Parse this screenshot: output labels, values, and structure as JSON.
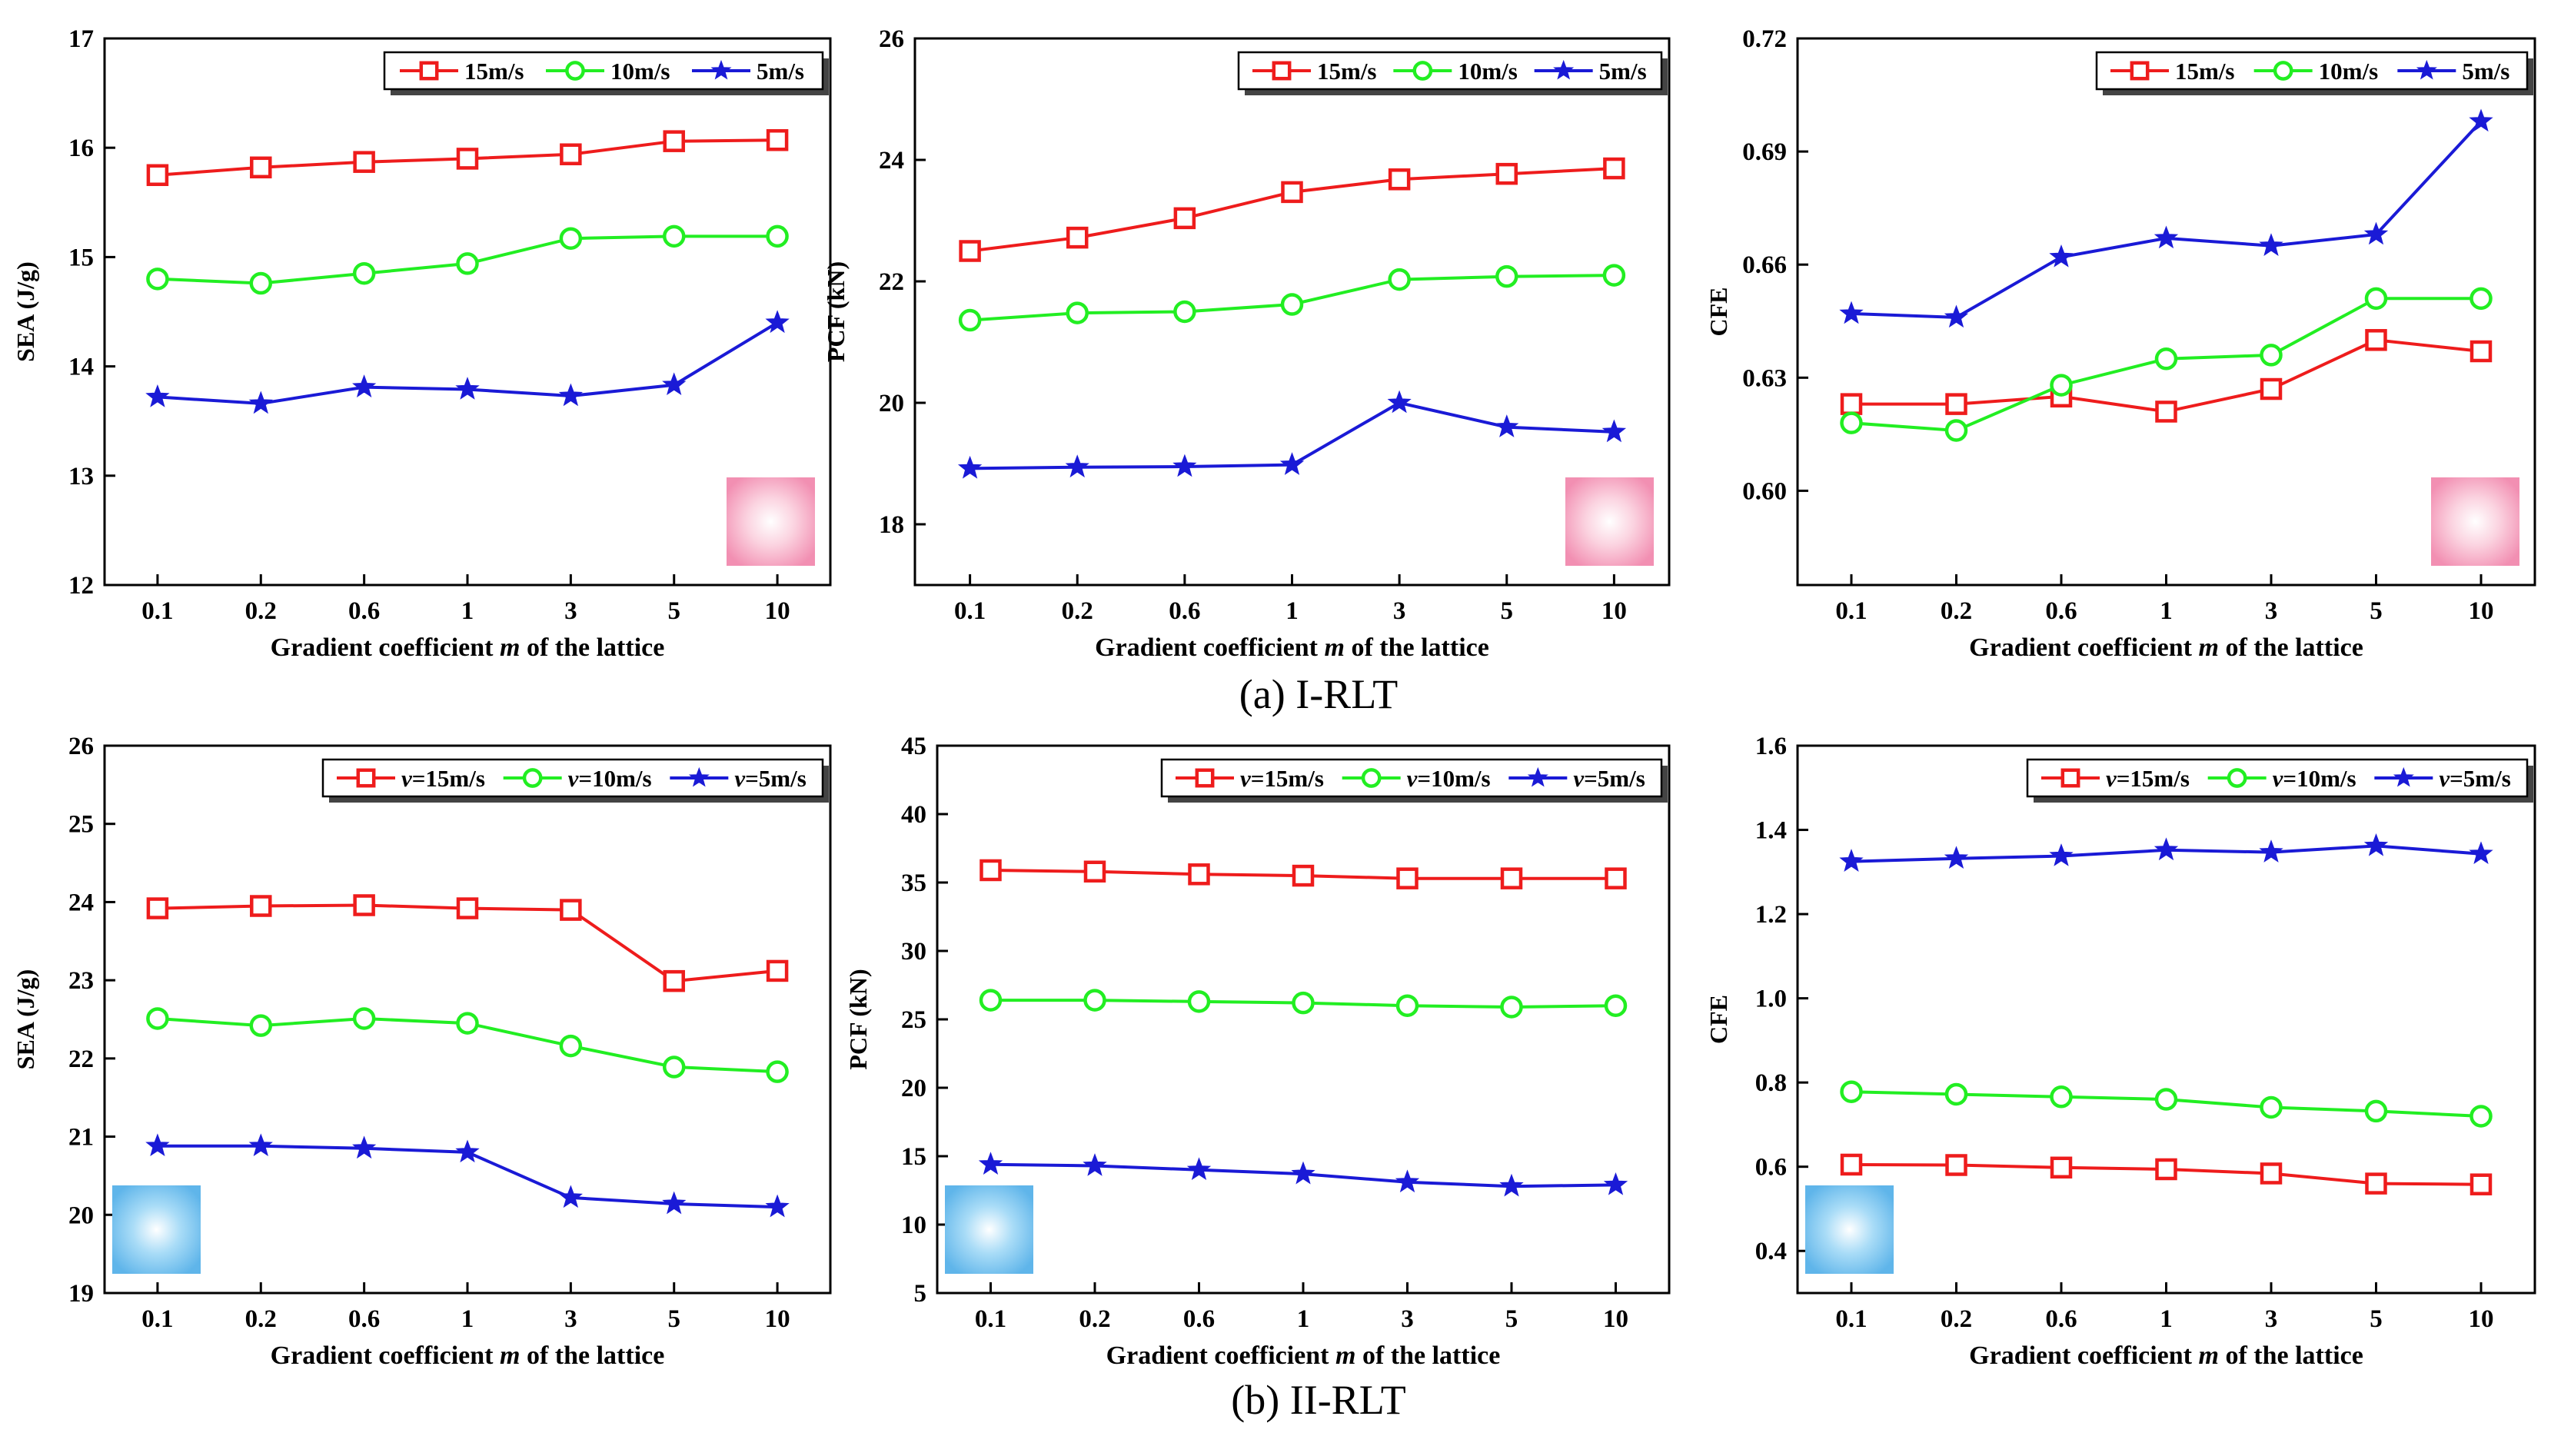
{
  "colors": {
    "red": "#ee1c1c",
    "green": "#22ee22",
    "blue": "#1a1ad6",
    "pink_swatch": "#f7a8c2",
    "blue_swatch": "#7fc6f0"
  },
  "captions": {
    "a": "(a) I-RLT",
    "b": "(b) II-RLT"
  },
  "chart_data": [
    {
      "id": "a-sea",
      "type": "line",
      "categories": [
        "0.1",
        "0.2",
        "0.6",
        "1",
        "3",
        "5",
        "10"
      ],
      "xlabel_pre": "Gradient coefficient ",
      "xlabel_em": "m",
      "xlabel_post": " of the lattice",
      "ylabel": "SEA (J/g)",
      "ylim": [
        12,
        17
      ],
      "yticks": [
        12,
        13,
        14,
        15,
        16,
        17
      ],
      "ytick_labels": [
        "12",
        "13",
        "14",
        "15",
        "16",
        "17"
      ],
      "legend_position": "top-right",
      "swatch": "pink",
      "swatch_position": "bottom-right",
      "series": [
        {
          "name": "15m/s",
          "prefix": "",
          "marker": "square",
          "color": "red",
          "values": [
            15.75,
            15.82,
            15.87,
            15.9,
            15.94,
            16.06,
            16.07
          ]
        },
        {
          "name": "10m/s",
          "prefix": "",
          "marker": "circle",
          "color": "green",
          "values": [
            14.8,
            14.76,
            14.85,
            14.94,
            15.17,
            15.19,
            15.19
          ]
        },
        {
          "name": "5m/s",
          "prefix": "",
          "marker": "star",
          "color": "blue",
          "values": [
            13.72,
            13.66,
            13.81,
            13.79,
            13.73,
            13.83,
            14.4
          ]
        }
      ]
    },
    {
      "id": "a-pcf",
      "type": "line",
      "categories": [
        "0.1",
        "0.2",
        "0.6",
        "1",
        "3",
        "5",
        "10"
      ],
      "xlabel_pre": "Gradient coefficient ",
      "xlabel_em": "m",
      "xlabel_post": " of the lattice",
      "ylabel": "PCF (kN)",
      "ylim": [
        17,
        26
      ],
      "yticks": [
        18,
        20,
        22,
        24,
        26
      ],
      "ytick_labels": [
        "18",
        "20",
        "22",
        "24",
        "26"
      ],
      "legend_position": "top-right",
      "swatch": "pink",
      "swatch_position": "bottom-right",
      "series": [
        {
          "name": "15m/s",
          "prefix": "",
          "marker": "square",
          "color": "red",
          "values": [
            22.5,
            22.72,
            23.04,
            23.47,
            23.68,
            23.77,
            23.86
          ]
        },
        {
          "name": "10m/s",
          "prefix": "",
          "marker": "circle",
          "color": "green",
          "values": [
            21.36,
            21.48,
            21.5,
            21.62,
            22.03,
            22.08,
            22.1
          ]
        },
        {
          "name": "5m/s",
          "prefix": "",
          "marker": "star",
          "color": "blue",
          "values": [
            18.92,
            18.94,
            18.95,
            18.98,
            20.0,
            19.6,
            19.52
          ]
        }
      ]
    },
    {
      "id": "a-cfe",
      "type": "line",
      "categories": [
        "0.1",
        "0.2",
        "0.6",
        "1",
        "3",
        "5",
        "10"
      ],
      "xlabel_pre": "Gradient coefficient ",
      "xlabel_em": "m",
      "xlabel_post": " of the lattice",
      "ylabel": "CFE",
      "ylim": [
        0.575,
        0.72
      ],
      "yticks": [
        0.6,
        0.63,
        0.66,
        0.69,
        0.72
      ],
      "ytick_labels": [
        "0.60",
        "0.63",
        "0.66",
        "0.69",
        "0.72"
      ],
      "legend_position": "top-right",
      "swatch": "pink",
      "swatch_position": "bottom-right",
      "series": [
        {
          "name": "15m/s",
          "prefix": "",
          "marker": "square",
          "color": "red",
          "values": [
            0.623,
            0.623,
            0.625,
            0.621,
            0.627,
            0.64,
            0.637
          ]
        },
        {
          "name": "10m/s",
          "prefix": "",
          "marker": "circle",
          "color": "green",
          "values": [
            0.618,
            0.616,
            0.628,
            0.635,
            0.636,
            0.651,
            0.651
          ]
        },
        {
          "name": "5m/s",
          "prefix": "",
          "marker": "star",
          "color": "blue",
          "values": [
            0.647,
            0.646,
            0.662,
            0.667,
            0.665,
            0.668,
            0.698
          ]
        }
      ]
    },
    {
      "id": "b-sea",
      "type": "line",
      "categories": [
        "0.1",
        "0.2",
        "0.6",
        "1",
        "3",
        "5",
        "10"
      ],
      "xlabel_pre": "Gradient coefficient ",
      "xlabel_em": "m",
      "xlabel_post": " of the lattice",
      "ylabel": "SEA (J/g)",
      "ylim": [
        19,
        26
      ],
      "yticks": [
        19,
        20,
        21,
        22,
        23,
        24,
        25,
        26
      ],
      "ytick_labels": [
        "19",
        "20",
        "21",
        "22",
        "23",
        "24",
        "25",
        "26"
      ],
      "legend_position": "top-right",
      "swatch": "blue",
      "swatch_position": "bottom-left",
      "series": [
        {
          "name": "=15m/s",
          "prefix": "v",
          "marker": "square",
          "color": "red",
          "values": [
            23.92,
            23.95,
            23.96,
            23.92,
            23.9,
            22.99,
            23.12
          ]
        },
        {
          "name": "=10m/s",
          "prefix": "v",
          "marker": "circle",
          "color": "green",
          "values": [
            22.51,
            22.42,
            22.51,
            22.45,
            22.16,
            21.89,
            21.83
          ]
        },
        {
          "name": "=5m/s",
          "prefix": "v",
          "marker": "star",
          "color": "blue",
          "values": [
            20.88,
            20.88,
            20.85,
            20.8,
            20.22,
            20.14,
            20.1
          ]
        }
      ]
    },
    {
      "id": "b-pcf",
      "type": "line",
      "categories": [
        "0.1",
        "0.2",
        "0.6",
        "1",
        "3",
        "5",
        "10"
      ],
      "xlabel_pre": "Gradient coefficient ",
      "xlabel_em": "m",
      "xlabel_post": " of the lattice",
      "ylabel": "PCF (kN)",
      "ylim": [
        5,
        45
      ],
      "yticks": [
        5,
        10,
        15,
        20,
        25,
        30,
        35,
        40,
        45
      ],
      "ytick_labels": [
        "5",
        "10",
        "15",
        "20",
        "25",
        "30",
        "35",
        "40",
        "45"
      ],
      "legend_position": "top-right",
      "swatch": "blue",
      "swatch_position": "bottom-left",
      "series": [
        {
          "name": "=15m/s",
          "prefix": "v",
          "marker": "square",
          "color": "red",
          "values": [
            35.9,
            35.8,
            35.6,
            35.5,
            35.3,
            35.3,
            35.3
          ]
        },
        {
          "name": "=10m/s",
          "prefix": "v",
          "marker": "circle",
          "color": "green",
          "values": [
            26.4,
            26.4,
            26.3,
            26.2,
            26.0,
            25.9,
            26.0
          ]
        },
        {
          "name": "=5m/s",
          "prefix": "v",
          "marker": "star",
          "color": "blue",
          "values": [
            14.4,
            14.3,
            14.0,
            13.7,
            13.1,
            12.8,
            12.9
          ]
        }
      ]
    },
    {
      "id": "b-cfe",
      "type": "line",
      "categories": [
        "0.1",
        "0.2",
        "0.6",
        "1",
        "3",
        "5",
        "10"
      ],
      "xlabel_pre": "Gradient coefficient ",
      "xlabel_em": "m",
      "xlabel_post": " of the lattice",
      "ylabel": "CFE",
      "ylim": [
        0.3,
        1.6
      ],
      "yticks": [
        0.4,
        0.6,
        0.8,
        1.0,
        1.2,
        1.4,
        1.6
      ],
      "ytick_labels": [
        "0.4",
        "0.6",
        "0.8",
        "1.0",
        "1.2",
        "1.4",
        "1.6"
      ],
      "legend_position": "top-right",
      "swatch": "blue",
      "swatch_position": "bottom-left",
      "series": [
        {
          "name": "=15m/s",
          "prefix": "v",
          "marker": "square",
          "color": "red",
          "values": [
            0.605,
            0.604,
            0.598,
            0.594,
            0.584,
            0.56,
            0.558
          ]
        },
        {
          "name": "=10m/s",
          "prefix": "v",
          "marker": "circle",
          "color": "green",
          "values": [
            0.778,
            0.772,
            0.766,
            0.76,
            0.741,
            0.732,
            0.72
          ]
        },
        {
          "name": "=5m/s",
          "prefix": "v",
          "marker": "star",
          "color": "blue",
          "values": [
            1.325,
            1.332,
            1.338,
            1.352,
            1.347,
            1.362,
            1.343
          ]
        }
      ]
    }
  ]
}
